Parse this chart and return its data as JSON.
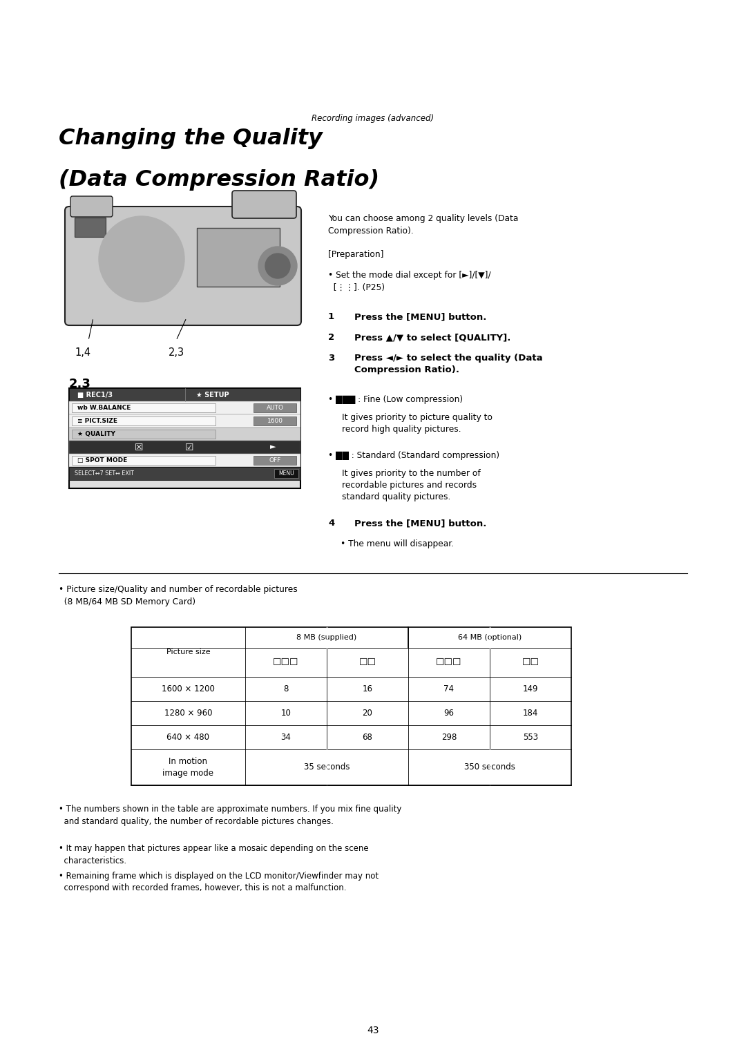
{
  "page_width": 10.8,
  "page_height": 15.26,
  "bg_color": "#ffffff",
  "subtitle_text": "Recording images (advanced)",
  "title_line1": "Changing the Quality",
  "title_line2": "(Data Compression Ratio)",
  "intro_text": "You can choose among 2 quality levels (Data\nCompression Ratio).",
  "preparation_label": "[Preparation]",
  "steps": [
    {
      "num": "1",
      "text": "Press the [MENU] button."
    },
    {
      "num": "2",
      "text": "Press ▲/▼ to select [QUALITY]."
    },
    {
      "num": "3",
      "text": "Press ◄/► to select the quality (Data\nCompression Ratio)."
    }
  ],
  "footnote1": "• The numbers shown in the table are approximate numbers. If you mix fine quality\n  and standard quality, the number of recordable pictures changes.",
  "footnote2": "• It may happen that pictures appear like a mosaic depending on the scene\n  characteristics.",
  "footnote3": "• Remaining frame which is displayed on the LCD monitor/Viewfinder may not\n  correspond with recorded frames, however, this is not a malfunction.",
  "page_number": "43"
}
